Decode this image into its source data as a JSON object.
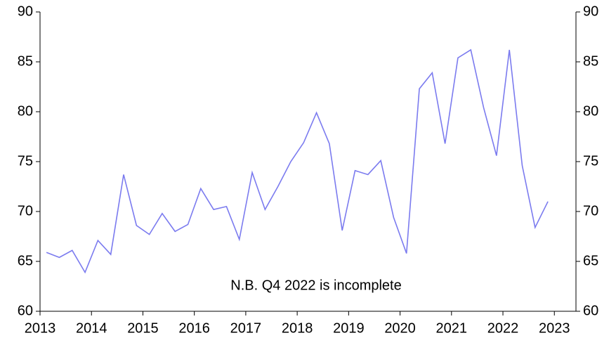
{
  "chart_data": {
    "type": "line",
    "annotation": "N.B. Q4 2022 is incomplete",
    "x": [
      2013.125,
      2013.375,
      2013.625,
      2013.875,
      2014.125,
      2014.375,
      2014.625,
      2014.875,
      2015.125,
      2015.375,
      2015.625,
      2015.875,
      2016.125,
      2016.375,
      2016.625,
      2016.875,
      2017.125,
      2017.375,
      2017.625,
      2017.875,
      2018.125,
      2018.375,
      2018.625,
      2018.875,
      2019.125,
      2019.375,
      2019.625,
      2019.875,
      2020.125,
      2020.375,
      2020.625,
      2020.875,
      2021.125,
      2021.375,
      2021.625,
      2021.875,
      2022.125,
      2022.375,
      2022.625,
      2022.875
    ],
    "series": [
      {
        "color": "#7b7bef",
        "values": [
          65.9,
          65.4,
          66.1,
          63.9,
          67.1,
          65.7,
          73.7,
          68.6,
          67.7,
          69.8,
          68.0,
          68.7,
          72.3,
          70.2,
          70.5,
          67.2,
          73.9,
          70.2,
          72.5,
          75.0,
          76.9,
          79.9,
          76.8,
          68.1,
          74.1,
          73.7,
          75.1,
          69.4,
          65.8,
          82.3,
          83.9,
          76.8,
          85.4,
          86.2,
          80.4,
          75.6,
          86.2,
          74.6,
          68.4,
          71.0
        ]
      }
    ],
    "xlim": [
      2013,
      2023.42
    ],
    "xticks": [
      2013,
      2014,
      2015,
      2016,
      2017,
      2018,
      2019,
      2020,
      2021,
      2022,
      2023
    ],
    "ylim": [
      60,
      90
    ],
    "yticks": [
      60,
      65,
      70,
      75,
      80,
      85,
      90
    ],
    "y2lim": [
      60,
      90
    ],
    "y2ticks": [
      60,
      65,
      70,
      75,
      80,
      85,
      90
    ]
  }
}
